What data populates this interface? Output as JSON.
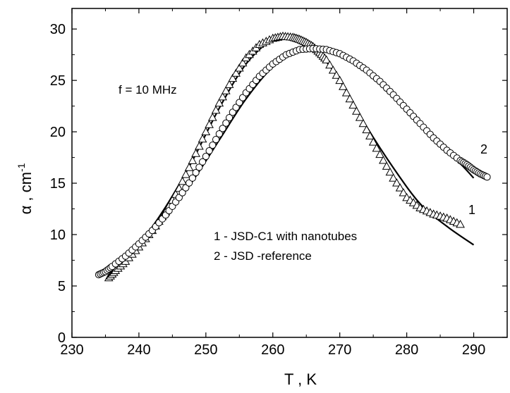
{
  "chart_data": {
    "type": "scatter",
    "xlabel": "T , K",
    "ylabel_main": "α , cm",
    "ylabel_exp": "-1",
    "xlim": [
      230,
      295
    ],
    "ylim": [
      0,
      32
    ],
    "x_ticks": [
      230,
      240,
      250,
      260,
      270,
      280,
      290
    ],
    "y_ticks": [
      0,
      5,
      10,
      15,
      20,
      25,
      30
    ],
    "grid": false,
    "annotations": {
      "frequency": "f = 10 MHz",
      "legend_line1": "1 - JSD-C1 with nanotubes",
      "legend_line2": "2 - JSD -reference"
    },
    "series": [
      {
        "label": "1",
        "marker": "triangle",
        "fit_line": true,
        "x": [
          235.5,
          236.5,
          238,
          240,
          242,
          244,
          246,
          248,
          250,
          252,
          254,
          256,
          258,
          260,
          261.5,
          263,
          264,
          265,
          266,
          267,
          268,
          270,
          272,
          274,
          276,
          278,
          280,
          282,
          284,
          286,
          288
        ],
        "y": [
          5.8,
          6.5,
          7.4,
          8.8,
          10.4,
          12.2,
          14.5,
          17.2,
          20.0,
          22.8,
          25.2,
          27.2,
          28.5,
          29.1,
          29.3,
          29.2,
          29.0,
          28.7,
          28.3,
          27.7,
          27.0,
          25.0,
          22.6,
          20.2,
          17.8,
          15.5,
          13.6,
          12.6,
          12.0,
          11.6,
          11.0
        ],
        "fit_x": [
          236,
          240,
          244,
          248,
          252,
          256,
          260,
          263,
          266,
          270,
          274,
          278,
          282,
          286,
          290
        ],
        "fit_y": [
          6.1,
          9.0,
          12.7,
          17.2,
          22.3,
          26.6,
          29.0,
          29.3,
          28.3,
          25.0,
          20.5,
          16.5,
          13.0,
          10.8,
          9.0
        ]
      },
      {
        "label": "2",
        "marker": "circle",
        "fit_line": true,
        "x": [
          234,
          235,
          236,
          238,
          240,
          242,
          244,
          246,
          248,
          250,
          252,
          254,
          256,
          258,
          260,
          262,
          264,
          266,
          268,
          270,
          272,
          274,
          276,
          278,
          280,
          282,
          284,
          286,
          288,
          289,
          290,
          291,
          292
        ],
        "y": [
          6.1,
          6.4,
          6.9,
          7.9,
          9.1,
          10.4,
          11.9,
          13.6,
          15.5,
          17.6,
          19.8,
          21.9,
          23.8,
          25.4,
          26.6,
          27.5,
          28.0,
          28.1,
          28.0,
          27.6,
          26.9,
          26.0,
          24.9,
          23.6,
          22.2,
          20.8,
          19.4,
          18.2,
          17.2,
          16.8,
          16.3,
          15.9,
          15.6
        ],
        "fit_x": [
          236,
          240,
          244,
          248,
          252,
          256,
          260,
          264,
          268,
          272,
          276,
          280,
          284,
          288,
          290
        ],
        "fit_y": [
          6.4,
          8.9,
          11.8,
          15.2,
          19.2,
          23.2,
          26.3,
          27.9,
          28.2,
          27.1,
          24.9,
          22.0,
          19.4,
          16.9,
          15.5
        ]
      }
    ]
  }
}
